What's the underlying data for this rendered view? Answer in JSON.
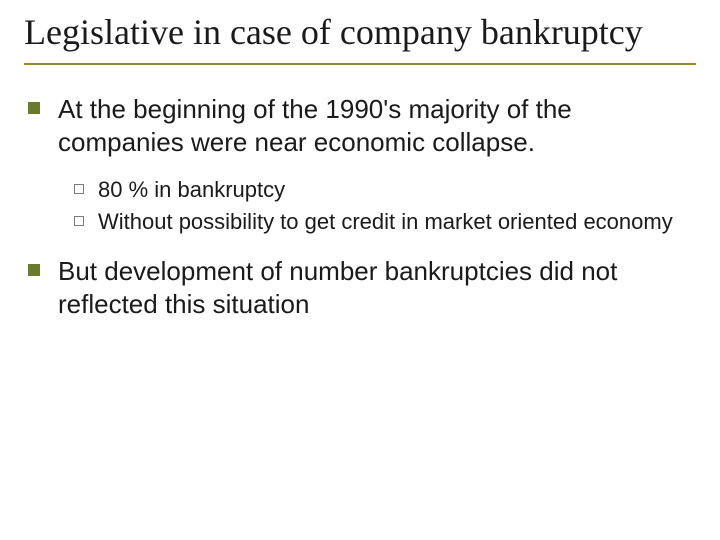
{
  "colors": {
    "title_underline": "#8a8a3a",
    "bullet_level1": "#6b7a2a",
    "bullet_level2_border": "#7a7a7a",
    "text": "#1a1a1a",
    "background": "#ffffff"
  },
  "typography": {
    "title_font": "Times New Roman",
    "body_font": "Arial",
    "title_fontsize": 36,
    "level1_fontsize": 26,
    "level2_fontsize": 22
  },
  "title": "Legislative in case of company bankruptcy",
  "bullets": {
    "0": {
      "text": "At the beginning of the 1990's majority of the companies were near economic collapse.",
      "sub": {
        "0": "80 % in bankruptcy",
        "1": "Without possibility to get credit in market oriented economy"
      }
    },
    "1": {
      "text": "But development of number bankruptcies did not reflected this situation"
    }
  }
}
